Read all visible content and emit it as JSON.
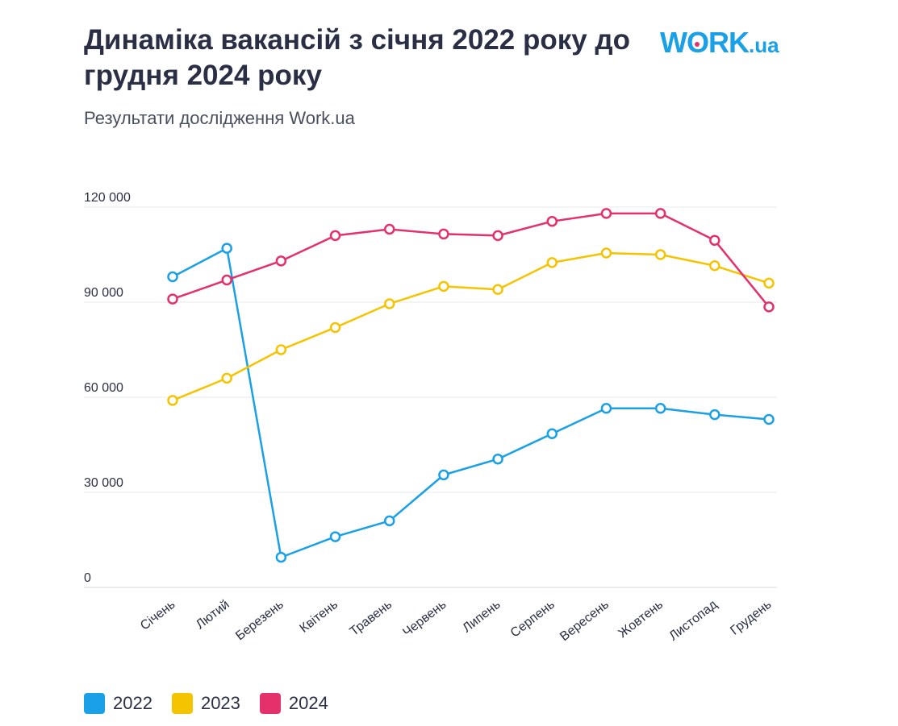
{
  "header": {
    "title": "Динаміка вакансій з січня 2022 року до грудня 2024 року",
    "subtitle": "Результати дослідження Work.ua",
    "logo_main": "W",
    "logo_o": "O",
    "logo_rest": "RK",
    "logo_suffix": ".ua"
  },
  "colors": {
    "2022": "#1aa0e6",
    "2023": "#f5c400",
    "2024": "#e4306b",
    "grid": "#e6e8ec",
    "text": "#2a2f45"
  },
  "chart_data": {
    "type": "line",
    "categories": [
      "Січень",
      "Лютий",
      "Березень",
      "Квітень",
      "Травень",
      "Червень",
      "Липень",
      "Серпень",
      "Вересень",
      "Жовтень",
      "Листопад",
      "Грудень"
    ],
    "y_ticks": [
      0,
      30000,
      60000,
      90000,
      120000
    ],
    "y_tick_labels": [
      "0",
      "30 000",
      "60 000",
      "90 000",
      "120 000"
    ],
    "ylim": [
      0,
      120000
    ],
    "grid": true,
    "legend_position": "bottom-left",
    "series": [
      {
        "name": "2022",
        "color": "#1aa0e6",
        "values": [
          98000,
          107000,
          9500,
          16000,
          21000,
          35500,
          40500,
          48500,
          56500,
          56500,
          54500,
          53000
        ]
      },
      {
        "name": "2023",
        "color": "#f5c400",
        "values": [
          59000,
          66000,
          75000,
          82000,
          89500,
          95000,
          94000,
          102500,
          105500,
          105000,
          101500,
          96000
        ]
      },
      {
        "name": "2024",
        "color": "#e4306b",
        "values": [
          91000,
          97000,
          103000,
          111000,
          113000,
          111500,
          111000,
          115500,
          118000,
          118000,
          109500,
          88500
        ]
      }
    ]
  },
  "legend": [
    {
      "label": "2022",
      "color": "#1aa0e6"
    },
    {
      "label": "2023",
      "color": "#f5c400"
    },
    {
      "label": "2024",
      "color": "#e4306b"
    }
  ]
}
